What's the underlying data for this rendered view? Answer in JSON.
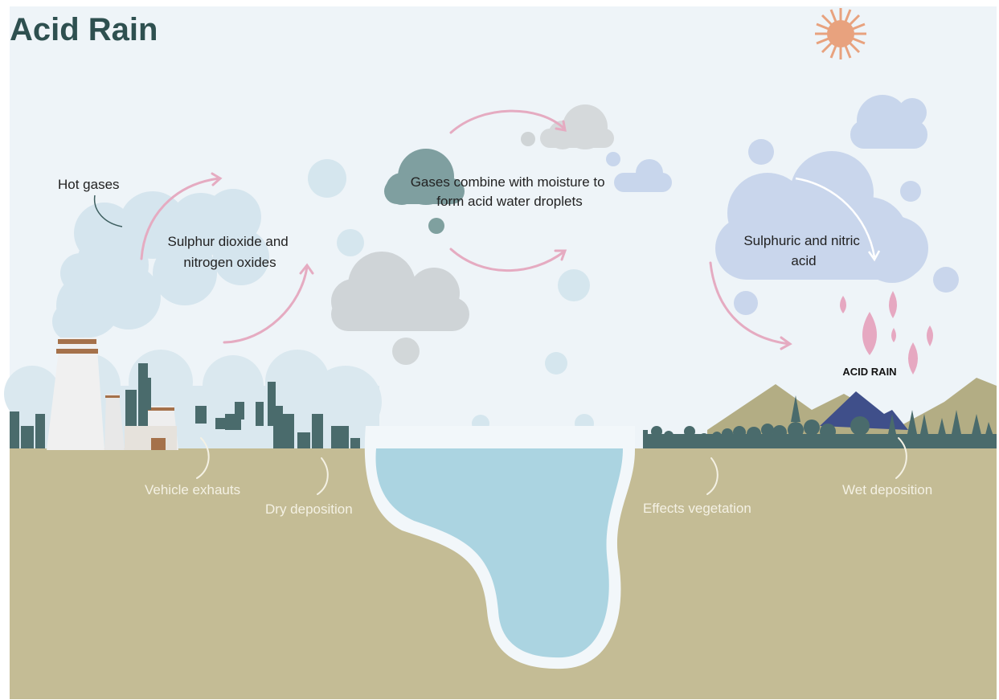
{
  "title": "Acid Rain",
  "labels": {
    "hot_gases": {
      "lines": [
        "Hot gases"
      ]
    },
    "sulphur": {
      "lines": [
        "Sulphur dioxide and",
        "nitrogen oxides"
      ]
    },
    "combine": {
      "lines": [
        "Gases combine with moisture to",
        "form acid water droplets"
      ]
    },
    "acid": {
      "lines": [
        "Sulphuric and nitric",
        "acid"
      ]
    },
    "acid_rain": {
      "lines": [
        "ACID RAIN"
      ]
    },
    "vehicle": {
      "lines": [
        "Vehicle exhauts"
      ]
    },
    "dry": {
      "lines": [
        "Dry deposition"
      ]
    },
    "vegetation": {
      "lines": [
        "Effects vegetation"
      ]
    },
    "wet": {
      "lines": [
        "Wet deposition"
      ]
    }
  }
}
